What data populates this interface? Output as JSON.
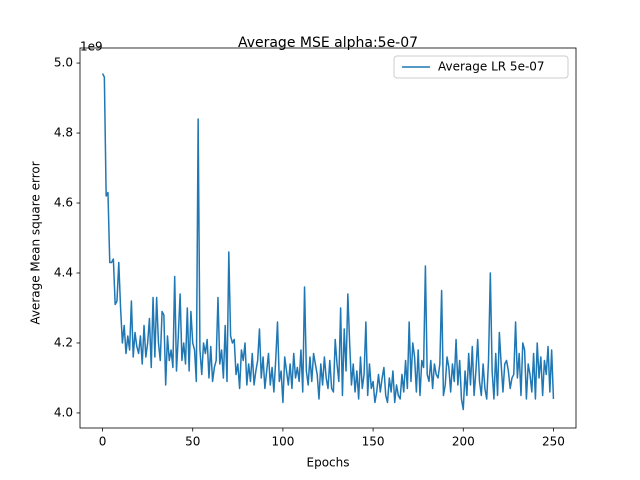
{
  "chart_data": {
    "type": "line",
    "title": "Average MSE alpha:5e-07",
    "xlabel": "Epochs",
    "ylabel": "Average Mean square error",
    "y_offset_label": "1e9",
    "legend": "upper right",
    "grid": false,
    "xlim": [
      -12.5,
      262.5
    ],
    "xticks": [
      0,
      50,
      100,
      150,
      200,
      250
    ],
    "ylim": [
      3.957,
      5.043
    ],
    "yticks": [
      {
        "value": 4,
        "label": "4.0"
      },
      {
        "value": 4.2,
        "label": "4.2"
      },
      {
        "value": 4.4,
        "label": "4.4"
      },
      {
        "value": 4.6,
        "label": "4.6"
      },
      {
        "value": 4.8,
        "label": "4.8"
      },
      {
        "value": 5,
        "label": "5.0"
      }
    ],
    "x": [
      0,
      1,
      2,
      3,
      4,
      5,
      6,
      7,
      8,
      9,
      10,
      11,
      12,
      13,
      14,
      15,
      16,
      17,
      18,
      19,
      20,
      21,
      22,
      23,
      24,
      25,
      26,
      27,
      28,
      29,
      30,
      31,
      32,
      33,
      34,
      35,
      36,
      37,
      38,
      39,
      40,
      41,
      42,
      43,
      44,
      45,
      46,
      47,
      48,
      49,
      50,
      51,
      52,
      53,
      54,
      55,
      56,
      57,
      58,
      59,
      60,
      61,
      62,
      63,
      64,
      65,
      66,
      67,
      68,
      69,
      70,
      71,
      72,
      73,
      74,
      75,
      76,
      77,
      78,
      79,
      80,
      81,
      82,
      83,
      84,
      85,
      86,
      87,
      88,
      89,
      90,
      91,
      92,
      93,
      94,
      95,
      96,
      97,
      98,
      99,
      100,
      101,
      102,
      103,
      104,
      105,
      106,
      107,
      108,
      109,
      110,
      111,
      112,
      113,
      114,
      115,
      116,
      117,
      118,
      119,
      120,
      121,
      122,
      123,
      124,
      125,
      126,
      127,
      128,
      129,
      130,
      131,
      132,
      133,
      134,
      135,
      136,
      137,
      138,
      139,
      140,
      141,
      142,
      143,
      144,
      145,
      146,
      147,
      148,
      149,
      150,
      151,
      152,
      153,
      154,
      155,
      156,
      157,
      158,
      159,
      160,
      161,
      162,
      163,
      164,
      165,
      166,
      167,
      168,
      169,
      170,
      171,
      172,
      173,
      174,
      175,
      176,
      177,
      178,
      179,
      180,
      181,
      182,
      183,
      184,
      185,
      186,
      187,
      188,
      189,
      190,
      191,
      192,
      193,
      194,
      195,
      196,
      197,
      198,
      199,
      200,
      201,
      202,
      203,
      204,
      205,
      206,
      207,
      208,
      209,
      210,
      211,
      212,
      213,
      214,
      215,
      216,
      217,
      218,
      219,
      220,
      221,
      222,
      223,
      224,
      225,
      226,
      227,
      228,
      229,
      230,
      231,
      232,
      233,
      234,
      235,
      236,
      237,
      238,
      239,
      240,
      241,
      242,
      243,
      244,
      245,
      246,
      247,
      248,
      249,
      250
    ],
    "series": [
      {
        "name": "Average LR 5e-07",
        "color": "#1f77b4",
        "values": [
          4.97,
          4.96,
          4.62,
          4.63,
          4.43,
          4.43,
          4.44,
          4.31,
          4.32,
          4.43,
          4.3,
          4.2,
          4.25,
          4.17,
          4.22,
          4.18,
          4.32,
          4.16,
          4.23,
          4.19,
          4.17,
          4.22,
          4.14,
          4.25,
          4.16,
          4.2,
          4.27,
          4.13,
          4.33,
          4.16,
          4.33,
          4.2,
          4.15,
          4.29,
          4.28,
          4.08,
          4.22,
          4.15,
          4.18,
          4.13,
          4.39,
          4.12,
          4.22,
          4.34,
          4.15,
          4.2,
          4.14,
          4.3,
          4.12,
          4.29,
          4.2,
          4.18,
          4.09,
          4.84,
          4.18,
          4.11,
          4.2,
          4.17,
          4.21,
          4.1,
          4.19,
          4.09,
          4.13,
          4.15,
          4.33,
          4.14,
          4.18,
          4.1,
          4.25,
          4.09,
          4.46,
          4.22,
          4.2,
          4.21,
          4.11,
          4.14,
          4.07,
          4.18,
          4.15,
          4.2,
          4.08,
          4.14,
          4.09,
          4.17,
          4.08,
          4.12,
          4.15,
          4.24,
          4.1,
          4.16,
          4.07,
          4.12,
          4.17,
          4.08,
          4.13,
          4.06,
          4.15,
          4.26,
          4.09,
          4.12,
          4.03,
          4.16,
          4.12,
          4.08,
          4.14,
          4.07,
          4.17,
          4.1,
          4.13,
          4.09,
          4.18,
          4.06,
          4.36,
          4.12,
          4.08,
          4.16,
          4.09,
          4.17,
          4.14,
          4.11,
          4.04,
          4.14,
          4.08,
          4.16,
          4.1,
          4.07,
          4.15,
          4.07,
          4.06,
          4.21,
          4.14,
          4.09,
          4.3,
          4.05,
          4.24,
          4.12,
          4.34,
          4.2,
          4.08,
          4.14,
          4.06,
          4.12,
          4.04,
          4.16,
          4.07,
          4.11,
          4.26,
          4.05,
          4.14,
          4.07,
          4.09,
          4.03,
          4.06,
          4.11,
          4.06,
          4.1,
          4.13,
          4.05,
          4.03,
          4.1,
          4.06,
          4.12,
          4.03,
          4.08,
          4.05,
          4.04,
          4.11,
          4.06,
          4.15,
          4.07,
          4.26,
          4.09,
          4.2,
          4.16,
          4.06,
          4.18,
          4.05,
          4.15,
          4.13,
          4.42,
          4.11,
          4.09,
          4.15,
          4.07,
          4.14,
          4.11,
          4.1,
          4.14,
          4.35,
          4.05,
          4.08,
          4.16,
          4.13,
          4.06,
          4.14,
          4.09,
          4.21,
          4.08,
          4.15,
          4.04,
          4.01,
          4.12,
          4.05,
          4.17,
          4.08,
          4.19,
          4.05,
          4.12,
          4.21,
          4.09,
          4.05,
          4.14,
          4.07,
          4.04,
          4.15,
          4.4,
          4.12,
          4.04,
          4.17,
          4.05,
          4.23,
          4.14,
          4.06,
          4.14,
          4.15,
          4.12,
          4.07,
          4.1,
          4.11,
          4.26,
          4.1,
          4.17,
          4.05,
          4.2,
          4.18,
          4.04,
          4.14,
          4.11,
          4.06,
          4.17,
          4.04,
          4.2,
          4.1,
          4.16,
          4.05,
          4.15,
          4.11,
          4.19,
          4.06,
          4.18,
          4.04
        ]
      }
    ]
  }
}
